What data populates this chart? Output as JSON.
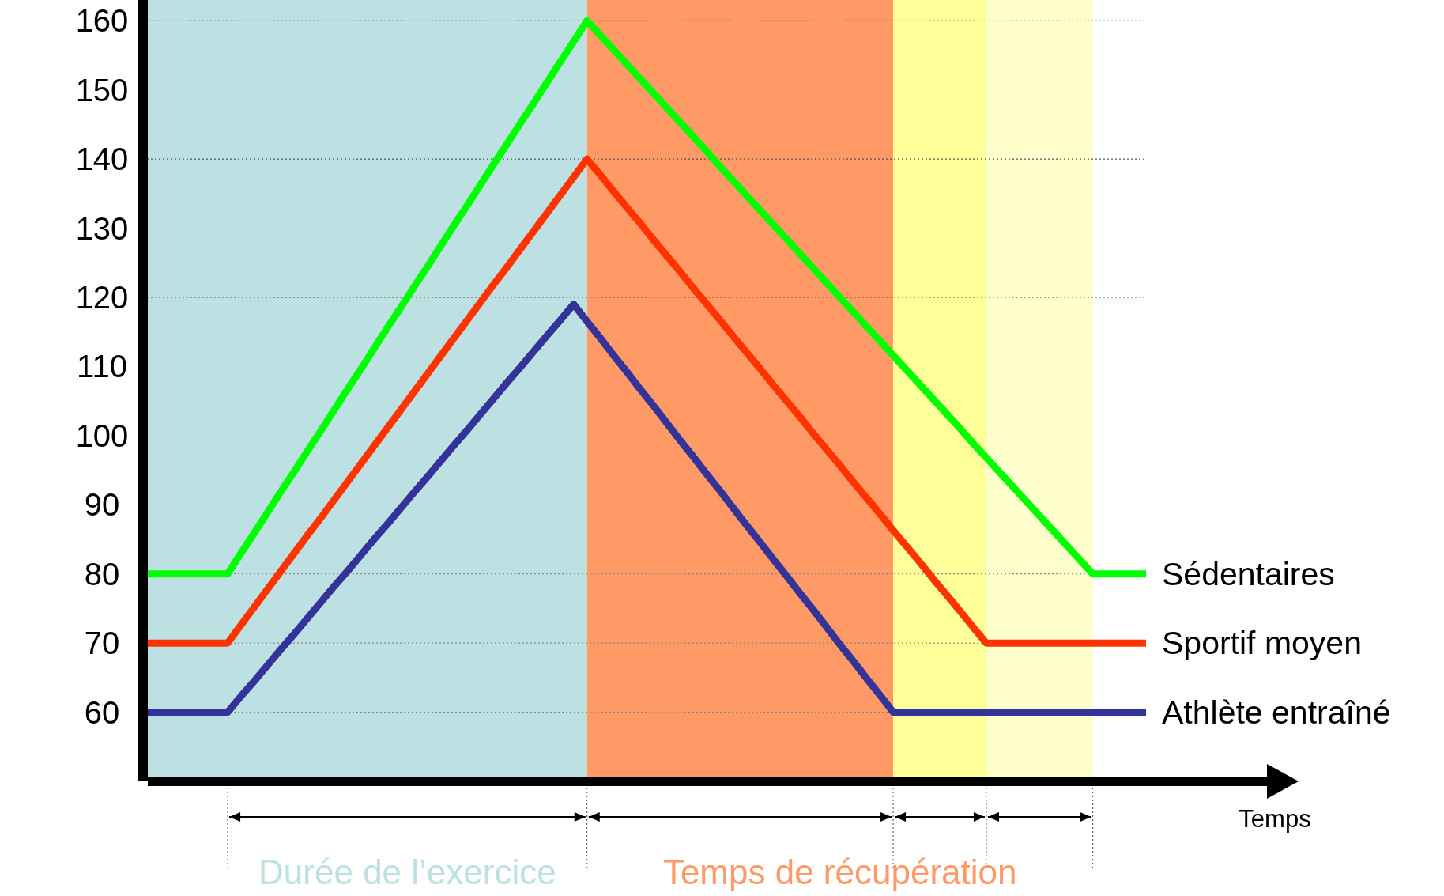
{
  "chart_data": {
    "type": "line",
    "xlabel": "Temps",
    "categories": [
      null,
      null,
      null,
      null,
      null,
      null,
      null,
      null,
      null,
      null,
      null,
      null,
      null,
      null,
      null,
      null,
      null,
      null,
      null,
      null,
      null,
      null,
      null,
      null,
      null,
      null,
      null,
      null,
      null,
      null,
      null,
      null,
      null,
      null,
      null,
      null,
      null,
      null,
      null,
      null,
      null,
      null,
      null,
      null,
      null,
      null,
      null,
      null,
      null,
      null,
      null,
      null,
      null,
      null,
      null,
      null,
      null,
      null,
      null,
      null,
      null,
      null,
      null,
      null,
      null,
      null,
      null,
      null,
      null,
      null,
      null,
      null,
      null,
      null,
      null,
      null
    ],
    "ylim": [
      50,
      163
    ],
    "yticks": [
      60,
      70,
      80,
      90,
      100,
      110,
      120,
      130,
      140,
      150,
      160
    ],
    "tick_labels": "y",
    "legend": false,
    "marker": "none",
    "line_style": "solid",
    "series": [
      {
        "name": "Sédentaires",
        "color": "#00ff00",
        "values": [
          80,
          80,
          80,
          80,
          80,
          80,
          80,
          83.0,
          85.9,
          88.9,
          91.9,
          94.8,
          97.8,
          100.7,
          103.7,
          106.7,
          109.6,
          112.6,
          115.6,
          118.5,
          121.5,
          124.4,
          127.4,
          130.4,
          133.3,
          136.3,
          139.3,
          142.2,
          145.2,
          148.1,
          151.1,
          154.1,
          157.0,
          160,
          157.9,
          155.8,
          153.7,
          151.6,
          149.5,
          147.4,
          145.3,
          143.2,
          141.1,
          138.9,
          136.8,
          134.7,
          132.6,
          130.5,
          128.4,
          126.3,
          124.2,
          122.1,
          120.0,
          117.9,
          115.8,
          113.7,
          111.6,
          109.5,
          107.4,
          105.3,
          103.2,
          101.1,
          98.9,
          96.8,
          94.7,
          92.6,
          90.5,
          88.4,
          86.3,
          84.2,
          82.1,
          80,
          80,
          80,
          80,
          80
        ]
      },
      {
        "name": "Sportif moyen",
        "color": "#ff3300",
        "values": [
          70,
          70,
          70,
          70,
          70,
          70,
          70,
          72.6,
          75.2,
          77.8,
          80.4,
          83.0,
          85.6,
          88.1,
          90.7,
          93.3,
          95.9,
          98.5,
          101.1,
          103.7,
          106.3,
          108.9,
          111.5,
          114.1,
          116.7,
          119.3,
          121.9,
          124.4,
          127.0,
          129.6,
          132.2,
          134.8,
          137.4,
          140,
          137.7,
          135.3,
          133.0,
          130.7,
          128.3,
          126.0,
          123.7,
          121.3,
          119.0,
          116.7,
          114.3,
          112.0,
          109.7,
          107.3,
          105.0,
          102.7,
          100.3,
          98.0,
          95.7,
          93.3,
          91.0,
          88.7,
          86.3,
          84.0,
          81.7,
          79.3,
          77.0,
          74.7,
          72.3,
          70,
          70,
          70,
          70,
          70,
          70,
          70,
          70,
          70,
          70,
          70,
          70,
          70
        ]
      },
      {
        "name": "Athlète entraîné",
        "color": "#333399",
        "values": [
          60,
          60,
          60,
          60,
          60,
          60,
          60,
          62.3,
          64.5,
          66.8,
          69.1,
          71.3,
          73.6,
          75.9,
          78.2,
          80.4,
          82.7,
          85.0,
          87.2,
          89.5,
          91.8,
          94.0,
          96.3,
          98.6,
          100.8,
          103.1,
          105.4,
          107.7,
          109.9,
          112.2,
          114.5,
          116.7,
          119,
          116.5,
          114.1,
          111.6,
          109.2,
          106.7,
          104.3,
          101.8,
          99.3,
          96.9,
          94.4,
          92.0,
          89.5,
          87.0,
          84.6,
          82.1,
          79.7,
          77.2,
          74.8,
          72.3,
          69.8,
          67.4,
          64.9,
          62.5,
          60,
          60,
          60,
          60,
          60,
          60,
          60,
          60,
          60,
          60,
          60,
          60,
          60,
          60,
          60,
          60,
          60,
          60,
          60,
          60
        ]
      }
    ],
    "annotations": [
      "Durée de l’exercice",
      "Temps de récupération"
    ],
    "ref_lines": [
      {
        "axis": "y",
        "value": 60,
        "line_style": "dotted",
        "color": "#888888"
      },
      {
        "axis": "y",
        "value": 70,
        "line_style": "dotted",
        "color": "#888888"
      },
      {
        "axis": "y",
        "value": 80,
        "line_style": "dotted",
        "color": "#888888"
      },
      {
        "axis": "y",
        "value": 120,
        "line_style": "dotted",
        "color": "#555555"
      },
      {
        "axis": "y",
        "value": 140,
        "line_style": "dotted",
        "color": "#555555"
      },
      {
        "axis": "y",
        "value": 160,
        "line_style": "dotted",
        "color": "#555555"
      }
    ]
  }
}
